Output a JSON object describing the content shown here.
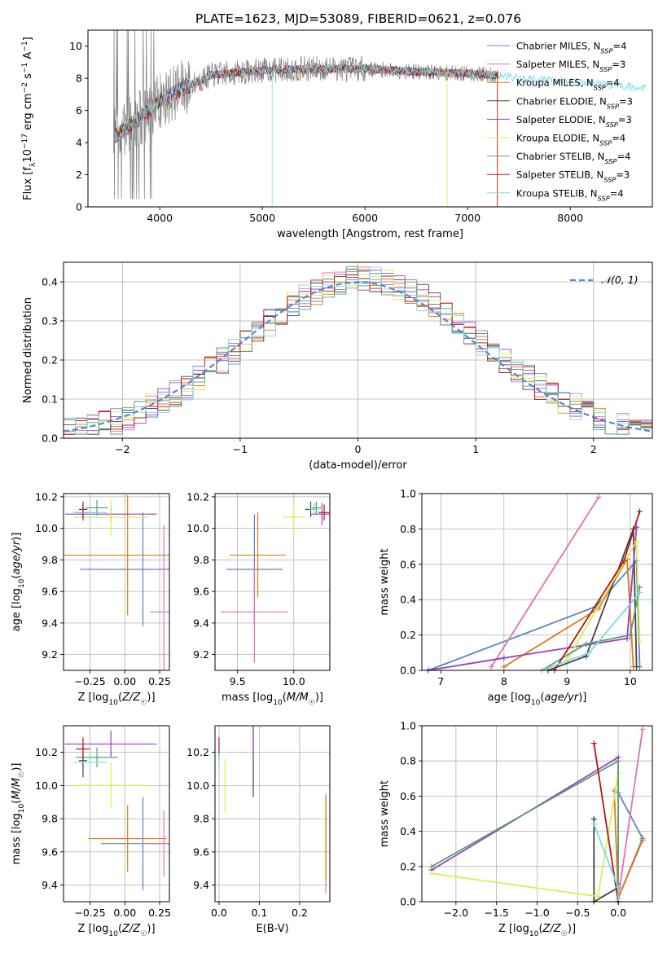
{
  "figure": {
    "title": "PLATE=1623, MJD=53089, FIBERID=0621, z=0.076"
  },
  "colors": [
    "#5b84c8",
    "#e070b8",
    "#e07a10",
    "#444444",
    "#9940c0",
    "#d8ee50",
    "#56a076",
    "#b01818",
    "#7ad8e6"
  ],
  "legend_labels": [
    "Chabrier MILES, N",
    "Salpeter MILES, N",
    "Kroupa MILES, N",
    "Chabrier ELODIE, N",
    "Salpeter ELODIE, N",
    "Kroupa ELODIE, N",
    "Chabrier STELIB, N",
    "Salpeter STELIB, N",
    "Kroupa STELIB, N"
  ],
  "legend_nssp": [
    "=4",
    "=3",
    "=4",
    "=3",
    "=3",
    "=4",
    "=4",
    "=3",
    "=4"
  ],
  "legend_sub": "SSP",
  "chart_data": [
    {
      "id": "spectrum",
      "type": "line",
      "title": "PLATE=1623, MJD=53089, FIBERID=0621, z=0.076",
      "xlabel": "wavelength [Angstrom, rest frame]",
      "ylabel": "Flux [fλ10−17 erg cm−2 s−1 A−1]",
      "xlim": [
        3300,
        8800
      ],
      "ylim": [
        0,
        11
      ],
      "xticks": [
        4000,
        5000,
        6000,
        7000,
        8000
      ],
      "yticks": [
        0,
        2,
        4,
        6,
        8,
        10
      ],
      "grid": false,
      "legend": "right",
      "series_x_range": [
        3550,
        8750
      ],
      "continuum": [
        [
          3550,
          4.3
        ],
        [
          3800,
          5.5
        ],
        [
          4000,
          6.6
        ],
        [
          4200,
          7.3
        ],
        [
          4500,
          8.2
        ],
        [
          5000,
          8.5
        ],
        [
          5500,
          8.6
        ],
        [
          6000,
          8.6
        ],
        [
          6500,
          8.4
        ],
        [
          7000,
          8.3
        ],
        [
          7300,
          8.2
        ],
        [
          7500,
          8.0
        ],
        [
          8000,
          7.8
        ],
        [
          8500,
          7.5
        ],
        [
          8750,
          7.4
        ]
      ]
    },
    {
      "id": "residuals",
      "type": "histogram",
      "xlabel": "(data-model)/error",
      "ylabel": "Normed distribution",
      "xlim": [
        -2.5,
        2.5
      ],
      "ylim": [
        0,
        0.45
      ],
      "xticks": [
        -2,
        -1,
        0,
        1,
        2
      ],
      "yticks": [
        0.0,
        0.1,
        0.2,
        0.3,
        0.4
      ],
      "grid": true,
      "legend": "top-right",
      "legend_label": "𝒩(0, 1)",
      "bin_width": 0.1
    },
    {
      "id": "age_vs_Z",
      "type": "errorbar",
      "xlabel": "Z [log10(Z/Z☉)]",
      "ylabel": "age  [log10(age/yr)]",
      "xlim": [
        -0.44,
        0.32
      ],
      "ylim": [
        9.1,
        10.22
      ],
      "xticks": [
        -0.25,
        0.0,
        0.25
      ],
      "yticks": [
        9.2,
        9.4,
        9.6,
        9.8,
        10.0,
        10.2
      ],
      "grid": true,
      "points": [
        {
          "c": 0,
          "x": 0.13,
          "y": 9.74,
          "xerr": 0.45,
          "yerr": 0.36
        },
        {
          "c": 1,
          "x": 0.28,
          "y": 9.47,
          "xerr": 0.1,
          "yerr": 0.55
        },
        {
          "c": 2,
          "x": 0.02,
          "y": 9.83,
          "xerr": 0.5,
          "yerr": 0.38
        },
        {
          "c": 3,
          "x": -0.3,
          "y": 10.12,
          "xerr": 0.03,
          "yerr": 0.05
        },
        {
          "c": 4,
          "x": -0.1,
          "y": 10.09,
          "xerr": 0.33,
          "yerr": 0.05
        },
        {
          "c": 5,
          "x": -0.1,
          "y": 10.07,
          "xerr": 0.27,
          "yerr": 0.12
        },
        {
          "c": 6,
          "x": -0.2,
          "y": 10.13,
          "xerr": 0.08,
          "yerr": 0.05
        },
        {
          "c": 7,
          "x": -0.3,
          "y": 10.1,
          "xerr": 0.05,
          "yerr": 0.05
        },
        {
          "c": 8,
          "x": -0.25,
          "y": 10.1,
          "xerr": 0.12,
          "yerr": 0.04
        }
      ]
    },
    {
      "id": "age_vs_mass",
      "type": "errorbar",
      "xlabel": "mass [log10(M/M☉)]",
      "ylabel": "",
      "xlim": [
        9.3,
        10.32
      ],
      "ylim": [
        9.1,
        10.22
      ],
      "xticks": [
        9.5,
        10.0
      ],
      "yticks": [
        9.2,
        9.4,
        9.6,
        9.8,
        10.0,
        10.2
      ],
      "grid": true,
      "points": [
        {
          "c": 0,
          "x": 9.65,
          "y": 9.74,
          "xerr": 0.25,
          "yerr": 0.35
        },
        {
          "c": 1,
          "x": 9.65,
          "y": 9.47,
          "xerr": 0.3,
          "yerr": 0.32
        },
        {
          "c": 2,
          "x": 9.68,
          "y": 9.83,
          "xerr": 0.25,
          "yerr": 0.27
        },
        {
          "c": 3,
          "x": 10.15,
          "y": 10.12,
          "xerr": 0.05,
          "yerr": 0.05
        },
        {
          "c": 4,
          "x": 10.25,
          "y": 10.09,
          "xerr": 0.1,
          "yerr": 0.07
        },
        {
          "c": 5,
          "x": 10.0,
          "y": 10.07,
          "xerr": 0.1,
          "yerr": 0.1
        },
        {
          "c": 6,
          "x": 10.2,
          "y": 10.13,
          "xerr": 0.04,
          "yerr": 0.04
        },
        {
          "c": 7,
          "x": 10.27,
          "y": 10.1,
          "xerr": 0.05,
          "yerr": 0.05
        },
        {
          "c": 8,
          "x": 10.18,
          "y": 10.12,
          "xerr": 0.04,
          "yerr": 0.04
        }
      ]
    },
    {
      "id": "massweight_vs_age",
      "type": "line",
      "xlabel": "age  [log10(age/yr)]",
      "ylabel": "mass weight",
      "xlim": [
        6.7,
        10.35
      ],
      "ylim": [
        0,
        1.0
      ],
      "xticks": [
        7,
        8,
        9,
        10
      ],
      "yticks": [
        0.0,
        0.2,
        0.4,
        0.6,
        0.8,
        1.0
      ],
      "grid": true,
      "series": [
        {
          "c": 0,
          "points": [
            [
              6.8,
              0.0
            ],
            [
              9.45,
              0.36
            ],
            [
              10.1,
              0.62
            ],
            [
              10.15,
              0.02
            ]
          ]
        },
        {
          "c": 1,
          "points": [
            [
              7.8,
              0.02
            ],
            [
              9.5,
              0.98
            ]
          ]
        },
        {
          "c": 2,
          "points": [
            [
              8.0,
              0.02
            ],
            [
              9.5,
              0.35
            ],
            [
              9.95,
              0.63
            ],
            [
              10.05,
              0.02
            ]
          ]
        },
        {
          "c": 3,
          "points": [
            [
              8.7,
              0.0
            ],
            [
              9.3,
              0.08
            ],
            [
              10.05,
              0.8
            ],
            [
              10.1,
              0.02
            ]
          ]
        },
        {
          "c": 4,
          "points": [
            [
              6.8,
              0.0
            ],
            [
              8.0,
              0.07
            ],
            [
              9.95,
              0.18
            ],
            [
              10.1,
              0.81
            ]
          ]
        },
        {
          "c": 5,
          "points": [
            [
              9.0,
              0.06
            ],
            [
              10.1,
              0.73
            ],
            [
              10.15,
              0.16
            ]
          ]
        },
        {
          "c": 6,
          "points": [
            [
              8.6,
              0.0
            ],
            [
              9.3,
              0.15
            ],
            [
              10.0,
              0.2
            ],
            [
              10.15,
              0.47
            ]
          ]
        },
        {
          "c": 7,
          "points": [
            [
              8.8,
              0.0
            ],
            [
              9.9,
              0.62
            ],
            [
              10.15,
              0.9
            ]
          ]
        },
        {
          "c": 8,
          "points": [
            [
              8.6,
              0.0
            ],
            [
              9.35,
              0.1
            ],
            [
              10.15,
              0.44
            ]
          ]
        }
      ]
    },
    {
      "id": "mass_vs_Z",
      "type": "errorbar",
      "xlabel": "Z [log10(Z/Z☉)]",
      "ylabel": "mass [log10(M/M☉)]",
      "xlim": [
        -0.44,
        0.32
      ],
      "ylim": [
        9.3,
        10.36
      ],
      "xticks": [
        -0.25,
        0.0,
        0.25
      ],
      "yticks": [
        9.4,
        9.6,
        9.8,
        10.0,
        10.2
      ],
      "grid": true,
      "points": [
        {
          "c": 0,
          "x": 0.13,
          "y": 9.65,
          "xerr": 0.3,
          "yerr": 0.28
        },
        {
          "c": 1,
          "x": 0.28,
          "y": 9.65,
          "xerr": 0.15,
          "yerr": 0.2
        },
        {
          "c": 2,
          "x": 0.02,
          "y": 9.68,
          "xerr": 0.28,
          "yerr": 0.2
        },
        {
          "c": 3,
          "x": -0.3,
          "y": 10.15,
          "xerr": 0.03,
          "yerr": 0.1
        },
        {
          "c": 4,
          "x": -0.1,
          "y": 10.25,
          "xerr": 0.33,
          "yerr": 0.08
        },
        {
          "c": 5,
          "x": -0.1,
          "y": 10.0,
          "xerr": 0.27,
          "yerr": 0.14
        },
        {
          "c": 6,
          "x": -0.2,
          "y": 10.17,
          "xerr": 0.15,
          "yerr": 0.06
        },
        {
          "c": 7,
          "x": -0.3,
          "y": 10.22,
          "xerr": 0.05,
          "yerr": 0.07
        },
        {
          "c": 8,
          "x": -0.25,
          "y": 10.14,
          "xerr": 0.12,
          "yerr": 0.05
        }
      ]
    },
    {
      "id": "mass_vs_ebv",
      "type": "errorbar",
      "xlabel": "E(B-V)",
      "ylabel": "",
      "xlim": [
        -0.01,
        0.275
      ],
      "ylim": [
        9.3,
        10.36
      ],
      "xticks": [
        0.0,
        0.1,
        0.2
      ],
      "yticks": [
        9.4,
        9.6,
        9.8,
        10.0,
        10.2
      ],
      "grid": true,
      "points": [
        {
          "c": 1,
          "x": 0.265,
          "y": 9.65,
          "xerr": 0,
          "yerr": 0.3
        },
        {
          "c": 2,
          "x": 0.265,
          "y": 9.68,
          "xerr": 0,
          "yerr": 0.25
        },
        {
          "c": 3,
          "x": 0.085,
          "y": 10.15,
          "xerr": 0,
          "yerr": 0.22
        },
        {
          "c": 4,
          "x": 0.085,
          "y": 10.25,
          "xerr": 0,
          "yerr": 0.08
        },
        {
          "c": 5,
          "x": 0.015,
          "y": 10.0,
          "xerr": 0,
          "yerr": 0.16
        },
        {
          "c": 7,
          "x": 0.0,
          "y": 10.22,
          "xerr": 0,
          "yerr": 0.07
        },
        {
          "c": 8,
          "x": 0.0,
          "y": 10.13,
          "xerr": 0,
          "yerr": 0.06
        }
      ]
    },
    {
      "id": "massweight_vs_Z",
      "type": "line",
      "xlabel": "Z [log10(Z/Z☉)]",
      "ylabel": "mass weight",
      "xlim": [
        -2.42,
        0.42
      ],
      "ylim": [
        0,
        1.0
      ],
      "xticks": [
        -2.0,
        -1.5,
        -1.0,
        -0.5,
        0.0
      ],
      "yticks": [
        0.0,
        0.2,
        0.4,
        0.6,
        0.8,
        1.0
      ],
      "grid": true,
      "series": [
        {
          "c": 0,
          "points": [
            [
              0.0,
              0.62
            ],
            [
              0.3,
              0.36
            ],
            [
              0.0,
              0.02
            ]
          ]
        },
        {
          "c": 1,
          "points": [
            [
              0.0,
              0.02
            ],
            [
              0.3,
              0.98
            ]
          ]
        },
        {
          "c": 2,
          "points": [
            [
              -0.05,
              0.63
            ],
            [
              0.0,
              0.02
            ],
            [
              0.3,
              0.35
            ]
          ]
        },
        {
          "c": 3,
          "points": [
            [
              -0.3,
              0.47
            ],
            [
              -0.3,
              0.0
            ],
            [
              0.0,
              0.08
            ]
          ]
        },
        {
          "c": 4,
          "points": [
            [
              -2.3,
              0.18
            ],
            [
              0.0,
              0.82
            ],
            [
              0.0,
              0.1
            ]
          ]
        },
        {
          "c": 5,
          "points": [
            [
              -2.3,
              0.16
            ],
            [
              -0.25,
              0.03
            ],
            [
              0.0,
              0.73
            ],
            [
              0.0,
              0.06
            ]
          ]
        },
        {
          "c": 6,
          "points": [
            [
              -2.3,
              0.2
            ],
            [
              0.0,
              0.8
            ],
            [
              0.0,
              0.0
            ]
          ]
        },
        {
          "c": 7,
          "points": [
            [
              -0.3,
              0.9
            ],
            [
              0.0,
              0.0
            ]
          ]
        },
        {
          "c": 8,
          "points": [
            [
              -0.3,
              0.44
            ],
            [
              0.0,
              0.08
            ],
            [
              0.0,
              0.02
            ]
          ]
        }
      ]
    }
  ]
}
